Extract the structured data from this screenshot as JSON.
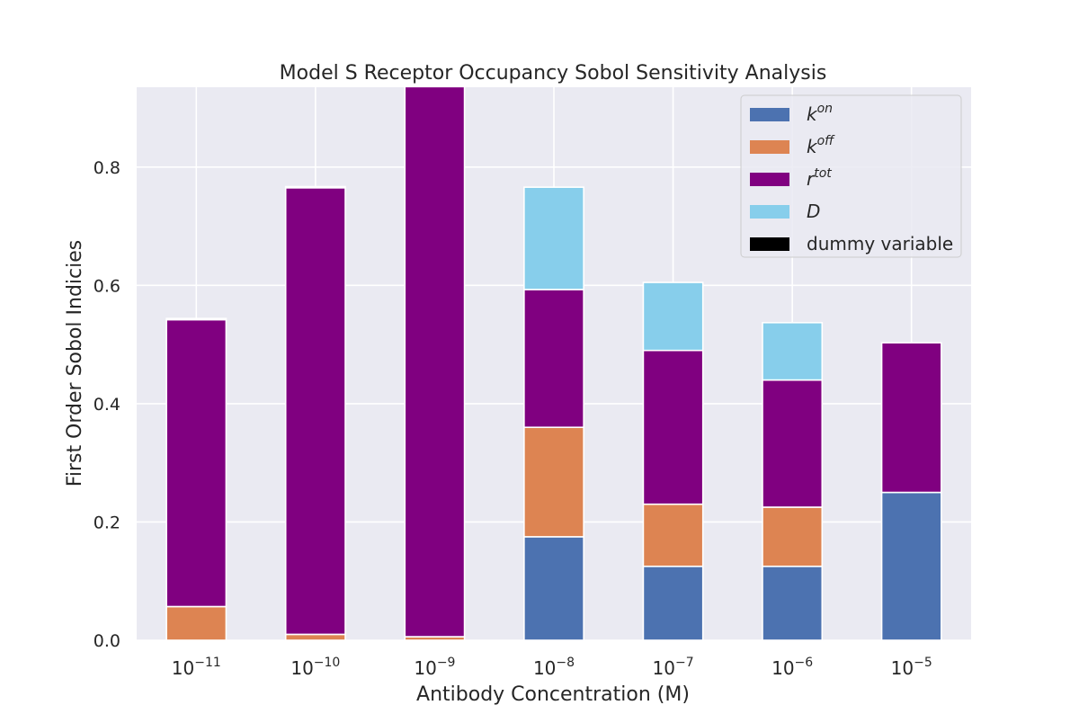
{
  "chart_data": {
    "type": "bar",
    "stacked": true,
    "title": "Model S Receptor Occupancy Sobol Sensitivity Analysis",
    "xlabel": "Antibody Concentration (M)",
    "ylabel": "First Order Sobol Indicies",
    "x_scale": "categorical (log-spaced concentrations)",
    "categories": [
      {
        "base": "10",
        "exp": "−11"
      },
      {
        "base": "10",
        "exp": "−10"
      },
      {
        "base": "10",
        "exp": "−9"
      },
      {
        "base": "10",
        "exp": "−8"
      },
      {
        "base": "10",
        "exp": "−7"
      },
      {
        "base": "10",
        "exp": "−6"
      },
      {
        "base": "10",
        "exp": "−5"
      }
    ],
    "ylim": [
      0,
      0.935
    ],
    "yticks": [
      0.0,
      0.2,
      0.4,
      0.6,
      0.8
    ],
    "ytick_labels": [
      "0.0",
      "0.2",
      "0.4",
      "0.6",
      "0.8"
    ],
    "grid": true,
    "legend_position": "top-right",
    "series": [
      {
        "name_base": "k",
        "name_sup": "on",
        "italic": true,
        "color": "#4c72b0",
        "values": [
          0.0,
          0.0,
          0.0,
          0.175,
          0.125,
          0.125,
          0.25
        ]
      },
      {
        "name_base": "k",
        "name_sup": "off",
        "italic": true,
        "color": "#dd8452",
        "values": [
          0.057,
          0.01,
          0.006,
          0.185,
          0.105,
          0.1,
          0.0
        ]
      },
      {
        "name_base": "r",
        "name_sup": "tot",
        "italic": true,
        "color": "#800080",
        "values": [
          0.485,
          0.755,
          0.93,
          0.233,
          0.26,
          0.215,
          0.253
        ]
      },
      {
        "name_base": "D",
        "name_sup": "",
        "italic": true,
        "color": "#87ceeb",
        "values": [
          0.0,
          0.0,
          0.0,
          0.173,
          0.115,
          0.097,
          0.0
        ]
      },
      {
        "name_base": "dummy variable",
        "name_sup": "",
        "italic": false,
        "color": "#000000",
        "values": [
          0.002,
          0.002,
          0.0,
          0.0,
          0.0,
          0.0,
          0.0
        ]
      }
    ]
  }
}
